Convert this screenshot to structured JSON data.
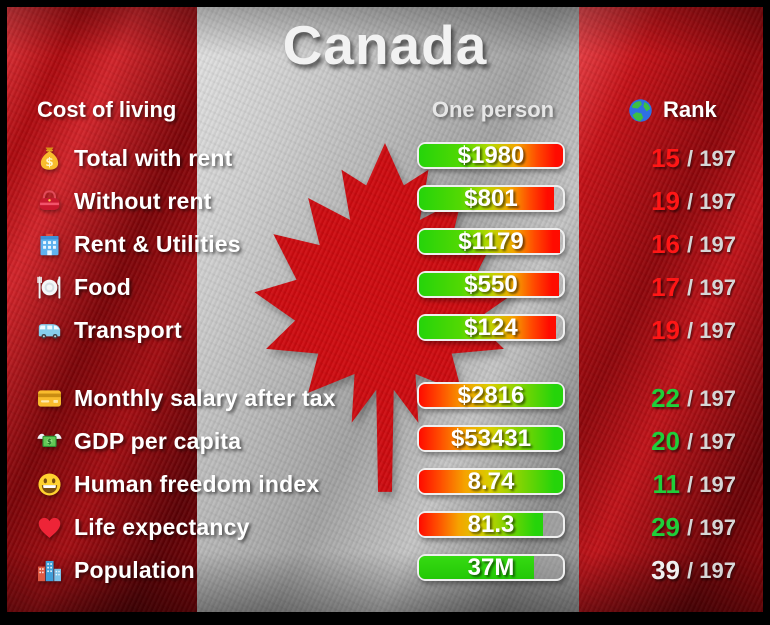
{
  "title": "Canada",
  "header": {
    "label_col": "Cost of living",
    "value_col": "One person",
    "rank_col": "Rank",
    "rank_icon": "globe-icon",
    "rank_total": "197"
  },
  "colors": {
    "flag_red": "#c00d12",
    "rank_red": "#ff1616",
    "rank_green": "#1fcf3a",
    "rank_white": "#f0f0f0",
    "bar_green": "#25d40a",
    "bar_yellow": "#d8cf00",
    "bar_red": "#ff0b00"
  },
  "sections": [
    {
      "name": "cost-of-living",
      "rows": [
        {
          "icon": "money-bag-icon",
          "label": "Total with rent",
          "value": "$1980",
          "bar_style": "green-to-red",
          "fill_pct": 100,
          "rank": "15",
          "rank_color": "#ff1616"
        },
        {
          "icon": "purse-icon",
          "label": "Without rent",
          "value": "$801",
          "bar_style": "green-to-red",
          "fill_pct": 94,
          "rank": "19",
          "rank_color": "#ff1616"
        },
        {
          "icon": "building-icon",
          "label": "Rent & Utilities",
          "value": "$1179",
          "bar_style": "green-to-red",
          "fill_pct": 98,
          "rank": "16",
          "rank_color": "#ff1616"
        },
        {
          "icon": "food-icon",
          "label": "Food",
          "value": "$550",
          "bar_style": "green-to-red",
          "fill_pct": 97,
          "rank": "17",
          "rank_color": "#ff1616"
        },
        {
          "icon": "van-icon",
          "label": "Transport",
          "value": "$124",
          "bar_style": "green-to-red",
          "fill_pct": 95,
          "rank": "19",
          "rank_color": "#ff1616"
        }
      ]
    },
    {
      "name": "general-stats",
      "rows": [
        {
          "icon": "credit-card-icon",
          "label": "Monthly salary after tax",
          "value": "$2816",
          "bar_style": "red-to-green",
          "fill_pct": 100,
          "rank": "22",
          "rank_color": "#1fcf3a"
        },
        {
          "icon": "money-wings-icon",
          "label": "GDP per capita",
          "value": "$53431",
          "bar_style": "red-to-green",
          "fill_pct": 100,
          "rank": "20",
          "rank_color": "#1fcf3a"
        },
        {
          "icon": "smiley-icon",
          "label": "Human freedom index",
          "value": "8.74",
          "bar_style": "red-to-green",
          "fill_pct": 100,
          "rank": "11",
          "rank_color": "#1fcf3a"
        },
        {
          "icon": "heart-icon",
          "label": "Life expectancy",
          "value": "81.3",
          "bar_style": "red-to-green",
          "fill_pct": 86,
          "rank": "29",
          "rank_color": "#1fcf3a"
        },
        {
          "icon": "city-icon",
          "label": "Population",
          "value": "37M",
          "bar_style": "solid-green",
          "fill_pct": 80,
          "rank": "39",
          "rank_color": "#f0f0f0"
        }
      ]
    }
  ],
  "chart_data": {
    "type": "table",
    "title": "Canada",
    "columns": [
      "Cost of living",
      "One person",
      "Rank"
    ],
    "rows": [
      [
        "Total with rent",
        "$1980",
        "15 / 197"
      ],
      [
        "Without rent",
        "$801",
        "19 / 197"
      ],
      [
        "Rent & Utilities",
        "$1179",
        "16 / 197"
      ],
      [
        "Food",
        "$550",
        "17 / 197"
      ],
      [
        "Transport",
        "$124",
        "19 / 197"
      ],
      [
        "Monthly salary after tax",
        "$2816",
        "22 / 197"
      ],
      [
        "GDP per capita",
        "$53431",
        "20 / 197"
      ],
      [
        "Human freedom index",
        "8.74",
        "11 / 197"
      ],
      [
        "Life expectancy",
        "81.3",
        "29 / 197"
      ],
      [
        "Population",
        "37M",
        "39 / 197"
      ]
    ]
  }
}
